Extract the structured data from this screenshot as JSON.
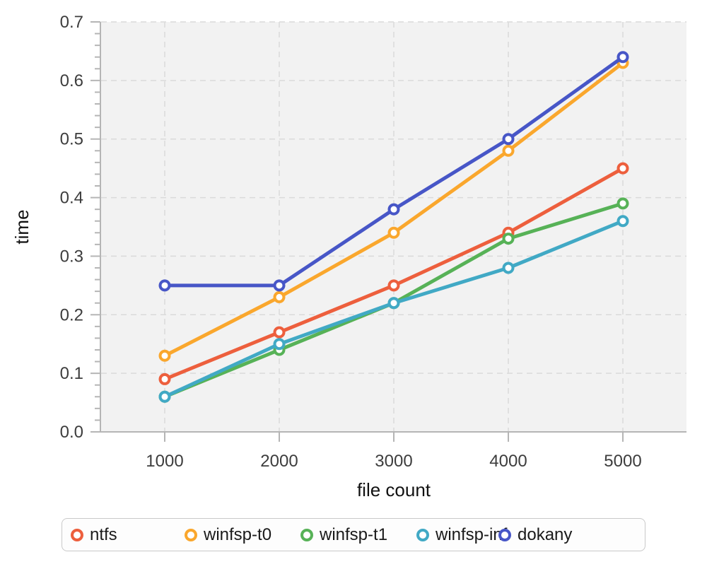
{
  "chart_data": {
    "type": "line",
    "title": "",
    "xlabel": "file count",
    "ylabel": "time",
    "x": [
      1000,
      2000,
      3000,
      4000,
      5000
    ],
    "xtick_labels": [
      "1000",
      "2000",
      "3000",
      "4000",
      "5000"
    ],
    "ytick_labels": [
      "0.0",
      "0.1",
      "0.2",
      "0.3",
      "0.4",
      "0.5",
      "0.6",
      "0.7"
    ],
    "yticks": [
      0.0,
      0.1,
      0.2,
      0.3,
      0.4,
      0.5,
      0.6,
      0.7
    ],
    "y_minor_step": 0.02,
    "ylim": [
      0,
      0.7
    ],
    "grid": true,
    "grid_style": "dashed",
    "plot_background": "#f2f2f2",
    "gridline_color": "#dadada",
    "axis_color": "#b5b5b5",
    "tick_label_color": "#3d3d3d",
    "marker": "open-circle",
    "legend_position": "bottom",
    "series": [
      {
        "name": "ntfs",
        "color": "#ed5f3d",
        "values": [
          0.09,
          0.17,
          0.25,
          0.34,
          0.45
        ]
      },
      {
        "name": "winfsp-t0",
        "color": "#faa72d",
        "values": [
          0.13,
          0.23,
          0.34,
          0.48,
          0.63
        ]
      },
      {
        "name": "winfsp-t1",
        "color": "#57b257",
        "values": [
          0.06,
          0.14,
          0.22,
          0.33,
          0.39
        ]
      },
      {
        "name": "winfsp-inf",
        "color": "#41a9c5",
        "values": [
          0.06,
          0.15,
          0.22,
          0.28,
          0.36
        ]
      },
      {
        "name": "dokany",
        "color": "#4756c7",
        "values": [
          0.25,
          0.25,
          0.38,
          0.5,
          0.64
        ]
      }
    ]
  }
}
